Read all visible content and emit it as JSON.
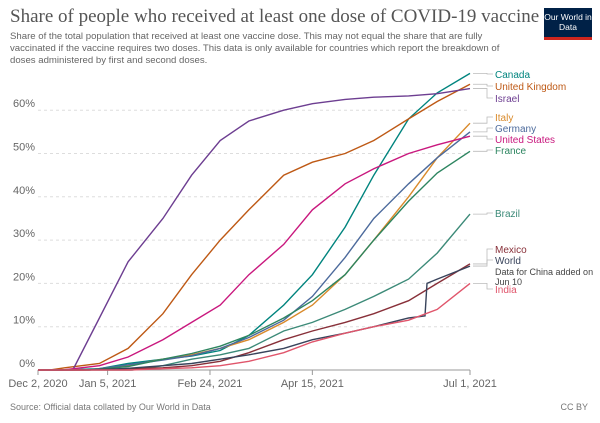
{
  "header": {
    "title": "Share of people who received at least one dose of COVID-19 vaccine",
    "subtitle": "Share of the total population that received at least one vaccine dose. This may not equal the share that are fully vaccinated if the vaccine requires two doses. This data is only available for countries which report the breakdown of doses administered by first and second doses.",
    "logo": "Our World in Data"
  },
  "footer": {
    "source": "Source: Official data collated by Our World in Data",
    "license": "CC BY"
  },
  "chart_data": {
    "type": "line",
    "title": "Share of people who received at least one dose of COVID-19 vaccine",
    "xlim": [
      "2020-12-02",
      "2021-07-01"
    ],
    "ylim": [
      0,
      65
    ],
    "y_ticks": [
      0,
      10,
      20,
      30,
      40,
      50,
      60
    ],
    "y_tick_labels": [
      "0%",
      "10%",
      "20%",
      "30%",
      "40%",
      "50%",
      "60%"
    ],
    "x_ticks": [
      "2020-12-02",
      "2021-01-05",
      "2021-02-24",
      "2021-04-15",
      "2021-07-01"
    ],
    "x_tick_labels": [
      "Dec 2, 2020",
      "Jan 5, 2021",
      "Feb 24, 2021",
      "Apr 15, 2021",
      "Jul 1, 2021"
    ],
    "grid": "horizontal dashed",
    "legend": "right (line-end labels)",
    "annotation": "Data for China added on Jun 10",
    "series": [
      {
        "name": "Canada",
        "color": "#00847e",
        "x": [
          "2020-12-15",
          "2021-01-01",
          "2021-01-15",
          "2021-02-01",
          "2021-02-15",
          "2021-03-01",
          "2021-03-15",
          "2021-04-01",
          "2021-04-15",
          "2021-05-01",
          "2021-05-15",
          "2021-06-01",
          "2021-06-15",
          "2021-07-01"
        ],
        "y": [
          0,
          0.3,
          1.5,
          2.5,
          3.2,
          4.5,
          8,
          15,
          22,
          33,
          45,
          58,
          64,
          68.5
        ]
      },
      {
        "name": "United Kingdom",
        "color": "#be5915",
        "x": [
          "2020-12-08",
          "2020-12-15",
          "2021-01-01",
          "2021-01-15",
          "2021-02-01",
          "2021-02-15",
          "2021-03-01",
          "2021-03-15",
          "2021-04-01",
          "2021-04-15",
          "2021-05-01",
          "2021-05-15",
          "2021-06-01",
          "2021-06-15",
          "2021-07-01"
        ],
        "y": [
          0,
          0.5,
          1.5,
          5,
          13,
          22,
          30,
          37,
          45,
          48,
          50,
          53,
          58,
          62,
          66
        ]
      },
      {
        "name": "Israel",
        "color": "#6d3e91",
        "x": [
          "2020-12-19",
          "2021-01-01",
          "2021-01-15",
          "2021-02-01",
          "2021-02-15",
          "2021-03-01",
          "2021-03-15",
          "2021-04-01",
          "2021-04-15",
          "2021-05-01",
          "2021-05-15",
          "2021-06-01",
          "2021-06-15",
          "2021-07-01"
        ],
        "y": [
          0,
          12,
          25,
          35,
          45,
          53,
          57.5,
          60,
          61.5,
          62.5,
          63,
          63.3,
          63.8,
          65
        ]
      },
      {
        "name": "Italy",
        "color": "#d98a2b",
        "x": [
          "2020-12-27",
          "2021-01-15",
          "2021-02-01",
          "2021-02-15",
          "2021-03-01",
          "2021-03-15",
          "2021-04-01",
          "2021-04-15",
          "2021-05-01",
          "2021-05-15",
          "2021-06-01",
          "2021-06-15",
          "2021-07-01"
        ],
        "y": [
          0,
          1,
          2.5,
          3.5,
          5,
          7,
          11,
          15,
          22,
          30,
          40,
          49,
          57
        ]
      },
      {
        "name": "Germany",
        "color": "#4c6a9c",
        "x": [
          "2020-12-27",
          "2021-01-15",
          "2021-02-01",
          "2021-02-15",
          "2021-03-01",
          "2021-03-15",
          "2021-04-01",
          "2021-04-15",
          "2021-05-01",
          "2021-05-15",
          "2021-06-01",
          "2021-06-15",
          "2021-07-01"
        ],
        "y": [
          0,
          1.2,
          2.3,
          3.3,
          5,
          7.5,
          11.5,
          17,
          26,
          35,
          43,
          49,
          55
        ]
      },
      {
        "name": "United States",
        "color": "#c9187e",
        "x": [
          "2020-12-14",
          "2021-01-01",
          "2021-01-15",
          "2021-02-01",
          "2021-02-15",
          "2021-03-01",
          "2021-03-15",
          "2021-04-01",
          "2021-04-15",
          "2021-05-01",
          "2021-05-15",
          "2021-06-01",
          "2021-06-15",
          "2021-07-01"
        ],
        "y": [
          0,
          1,
          3,
          7,
          11,
          15,
          22,
          29,
          37,
          43,
          46.5,
          50,
          52,
          54
        ]
      },
      {
        "name": "France",
        "color": "#2d8560",
        "x": [
          "2020-12-27",
          "2021-01-15",
          "2021-02-01",
          "2021-02-15",
          "2021-03-01",
          "2021-03-15",
          "2021-04-01",
          "2021-04-15",
          "2021-05-01",
          "2021-05-15",
          "2021-06-01",
          "2021-06-15",
          "2021-07-01"
        ],
        "y": [
          0,
          0.8,
          2.5,
          3.8,
          5.5,
          8,
          12,
          16,
          22,
          30,
          39,
          45.5,
          50.5
        ]
      },
      {
        "name": "Brazil",
        "color": "#3c8a78",
        "x": [
          "2021-01-17",
          "2021-02-01",
          "2021-02-15",
          "2021-03-01",
          "2021-03-15",
          "2021-04-01",
          "2021-04-15",
          "2021-05-01",
          "2021-05-15",
          "2021-06-01",
          "2021-06-15",
          "2021-07-01"
        ],
        "y": [
          0,
          1,
          2.5,
          3.5,
          5,
          9,
          11,
          14,
          17,
          21,
          27,
          36
        ]
      },
      {
        "name": "Mexico",
        "color": "#883039",
        "x": [
          "2020-12-24",
          "2021-01-15",
          "2021-02-01",
          "2021-02-15",
          "2021-03-01",
          "2021-03-15",
          "2021-04-01",
          "2021-04-15",
          "2021-05-01",
          "2021-05-15",
          "2021-06-01",
          "2021-06-15",
          "2021-07-01"
        ],
        "y": [
          0,
          0.3,
          0.5,
          1,
          2,
          4,
          7,
          9,
          11,
          13,
          16,
          20,
          24.5
        ]
      },
      {
        "name": "World",
        "color": "#38435b",
        "x": [
          "2020-12-15",
          "2021-01-01",
          "2021-01-15",
          "2021-02-01",
          "2021-02-15",
          "2021-03-01",
          "2021-03-15",
          "2021-04-01",
          "2021-04-15",
          "2021-05-01",
          "2021-05-15",
          "2021-06-01",
          "2021-06-09",
          "2021-06-10",
          "2021-06-15",
          "2021-07-01"
        ],
        "y": [
          0,
          0.1,
          0.4,
          1,
          1.5,
          2.5,
          3.5,
          5,
          7,
          8.5,
          10,
          12,
          12.5,
          20,
          21,
          24
        ]
      },
      {
        "name": "India",
        "color": "#e0556b",
        "x": [
          "2021-01-16",
          "2021-02-01",
          "2021-02-15",
          "2021-03-01",
          "2021-03-15",
          "2021-04-01",
          "2021-04-15",
          "2021-05-01",
          "2021-05-15",
          "2021-06-01",
          "2021-06-15",
          "2021-07-01"
        ],
        "y": [
          0,
          0.3,
          0.5,
          1,
          2,
          4,
          6.5,
          8.5,
          10,
          11.5,
          14,
          20
        ]
      }
    ]
  }
}
